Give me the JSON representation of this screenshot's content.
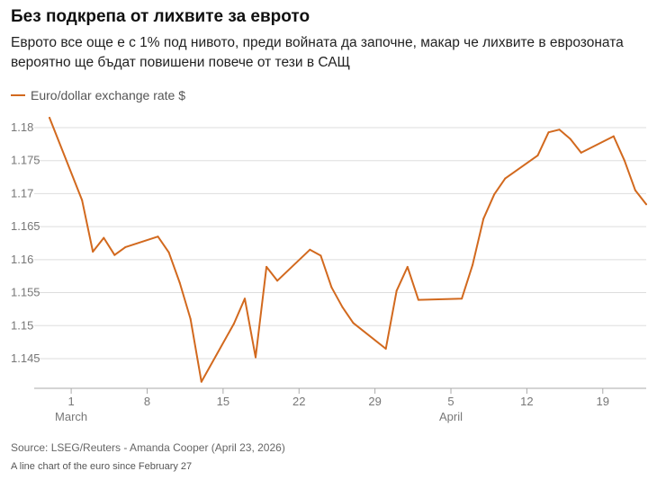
{
  "title": "Без подкрепа от лихвите за еврото",
  "subtitle": "Еврото все още е с 1% под нивото, преди войната да започне, макар че лихвите в еврозоната вероятно ще бъдат повишени повече от тези в САЩ",
  "source": "Source: LSEG/Reuters - Amanda Cooper (April 23, 2026)",
  "caption": "A line chart of the euro since February 27",
  "colors": {
    "line": "#d2691e",
    "grid": "#dddddd",
    "axis": "#aaaaaa"
  },
  "chart_data": {
    "type": "line",
    "series": [
      {
        "name": "Euro/dollar exchange rate $",
        "x": [
          "2026-02-27",
          "2026-03-02",
          "2026-03-03",
          "2026-03-04",
          "2026-03-05",
          "2026-03-06",
          "2026-03-09",
          "2026-03-10",
          "2026-03-11",
          "2026-03-12",
          "2026-03-13",
          "2026-03-16",
          "2026-03-17",
          "2026-03-18",
          "2026-03-19",
          "2026-03-20",
          "2026-03-23",
          "2026-03-24",
          "2026-03-25",
          "2026-03-26",
          "2026-03-27",
          "2026-03-30",
          "2026-03-31",
          "2026-04-01",
          "2026-04-02",
          "2026-04-06",
          "2026-04-07",
          "2026-04-08",
          "2026-04-09",
          "2026-04-10",
          "2026-04-13",
          "2026-04-14",
          "2026-04-15",
          "2026-04-16",
          "2026-04-17",
          "2026-04-20",
          "2026-04-21",
          "2026-04-22",
          "2026-04-23"
        ],
        "values": [
          1.1815,
          1.169,
          1.1612,
          1.1633,
          1.1607,
          1.1619,
          1.1635,
          1.1611,
          1.1565,
          1.151,
          1.1415,
          1.1503,
          1.1541,
          1.1452,
          1.1589,
          1.1568,
          1.1615,
          1.1606,
          1.1558,
          1.1528,
          1.1504,
          1.1465,
          1.1553,
          1.1589,
          1.1539,
          1.1541,
          1.1592,
          1.1662,
          1.1699,
          1.1723,
          1.1758,
          1.1793,
          1.1797,
          1.1783,
          1.1762,
          1.1787,
          1.175,
          1.1705,
          1.1684
        ]
      }
    ],
    "y_ticks": [
      "1.145",
      "1.15",
      "1.155",
      "1.16",
      "1.165",
      "1.17",
      "1.175",
      "1.18"
    ],
    "ylim": [
      1.1405,
      1.183
    ],
    "x_ticks": [
      {
        "date": "2026-03-01",
        "label": "1",
        "month": "March"
      },
      {
        "date": "2026-03-08",
        "label": "8",
        "month": ""
      },
      {
        "date": "2026-03-15",
        "label": "15",
        "month": ""
      },
      {
        "date": "2026-03-22",
        "label": "22",
        "month": ""
      },
      {
        "date": "2026-03-29",
        "label": "29",
        "month": ""
      },
      {
        "date": "2026-04-05",
        "label": "5",
        "month": "April"
      },
      {
        "date": "2026-04-12",
        "label": "12",
        "month": ""
      },
      {
        "date": "2026-04-19",
        "label": "19",
        "month": ""
      }
    ],
    "xlim": [
      "2026-02-27",
      "2026-04-23"
    ],
    "grid": "horizontal",
    "legend": "top-left"
  }
}
